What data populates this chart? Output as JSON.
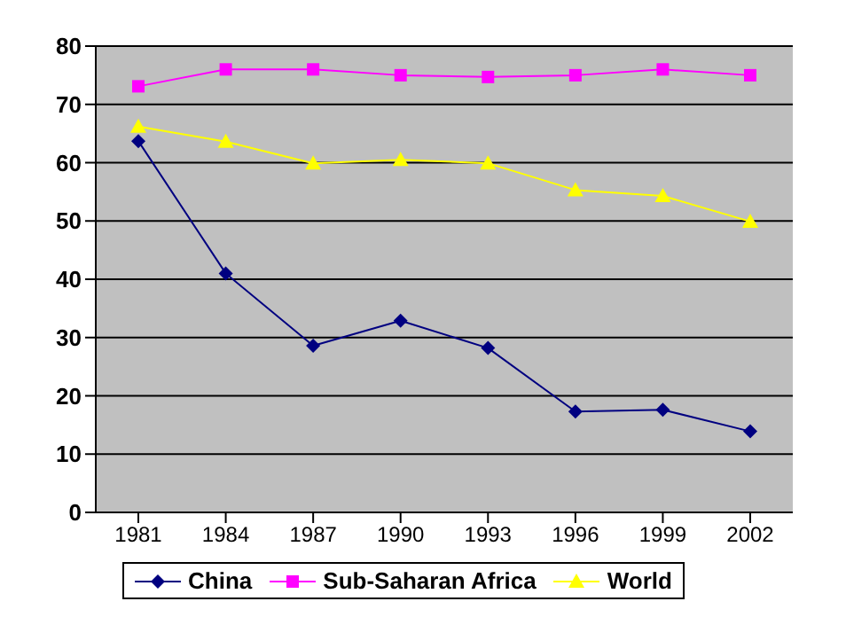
{
  "chart_data": {
    "type": "line",
    "categories": [
      "1981",
      "1984",
      "1987",
      "1990",
      "1993",
      "1996",
      "1999",
      "2002"
    ],
    "series": [
      {
        "name": "China",
        "color": "#000080",
        "marker": "diamond",
        "values": [
          63.7,
          41.0,
          28.6,
          32.9,
          28.2,
          17.3,
          17.6,
          13.9
        ]
      },
      {
        "name": "Sub-Saharan Africa",
        "color": "#ff00ff",
        "marker": "square",
        "values": [
          73.1,
          76.0,
          76.0,
          75.0,
          74.7,
          75.0,
          76.0,
          75.0
        ]
      },
      {
        "name": "World",
        "color": "#ffff00",
        "marker": "triangle",
        "values": [
          66.2,
          63.6,
          59.9,
          60.5,
          59.9,
          55.3,
          54.3,
          49.9
        ]
      }
    ],
    "ylim": [
      0,
      80
    ],
    "yticks": [
      0,
      10,
      20,
      30,
      40,
      50,
      60,
      70,
      80
    ],
    "grid": "y",
    "legend": "bottom",
    "line_style": "solid"
  }
}
